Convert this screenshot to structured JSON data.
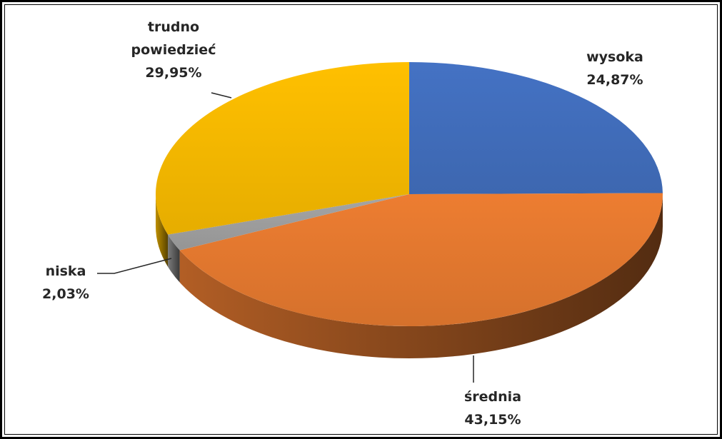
{
  "chart_data": {
    "type": "pie",
    "categories": [
      "wysoka",
      "średnia",
      "niska",
      "trudno powiedzieć"
    ],
    "values": [
      24.87,
      43.15,
      2.03,
      29.95
    ],
    "value_labels": [
      "24,87%",
      "43,15%",
      "2,03%",
      "29,95%"
    ],
    "colors": [
      "#4472c4",
      "#ed7d31",
      "#a5a5a5",
      "#ffc000"
    ]
  }
}
